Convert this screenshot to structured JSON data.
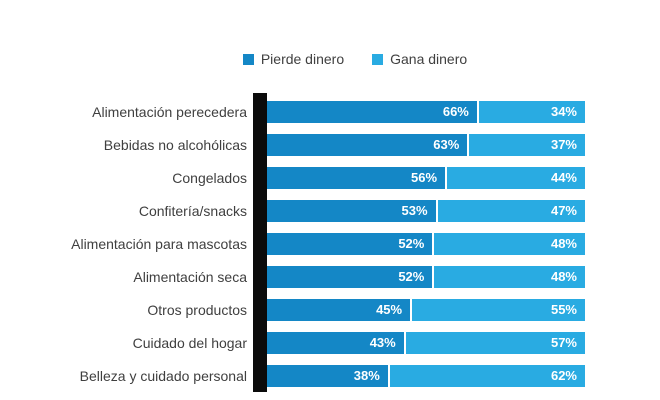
{
  "legend": {
    "items": [
      {
        "label": "Pierde dinero",
        "color": "#1487c6"
      },
      {
        "label": "Gana dinero",
        "color": "#29abe2"
      }
    ]
  },
  "colors": {
    "axis": "#0b0b0b",
    "series_dark": "#1487c6",
    "series_light": "#29abe2",
    "label_text": "#3f3f3f",
    "value_text": "#ffffff"
  },
  "chart_data": {
    "type": "bar",
    "orientation": "horizontal",
    "stacked": true,
    "title": "",
    "xlabel": "",
    "ylabel": "",
    "xlim": [
      0,
      100
    ],
    "grid": false,
    "legend_position": "top",
    "value_format": "percent",
    "categories": [
      "Alimentación perecedera",
      "Bebidas no alcohólicas",
      "Congelados",
      "Confitería/snacks",
      "Alimentación para mascotas",
      "Alimentación seca",
      "Otros productos",
      "Cuidado del hogar",
      "Belleza y cuidado personal"
    ],
    "series": [
      {
        "name": "Pierde dinero",
        "color": "#1487c6",
        "values": [
          66,
          63,
          56,
          53,
          52,
          52,
          45,
          43,
          38
        ]
      },
      {
        "name": "Gana dinero",
        "color": "#29abe2",
        "values": [
          34,
          37,
          44,
          47,
          48,
          48,
          55,
          57,
          62
        ]
      }
    ]
  }
}
